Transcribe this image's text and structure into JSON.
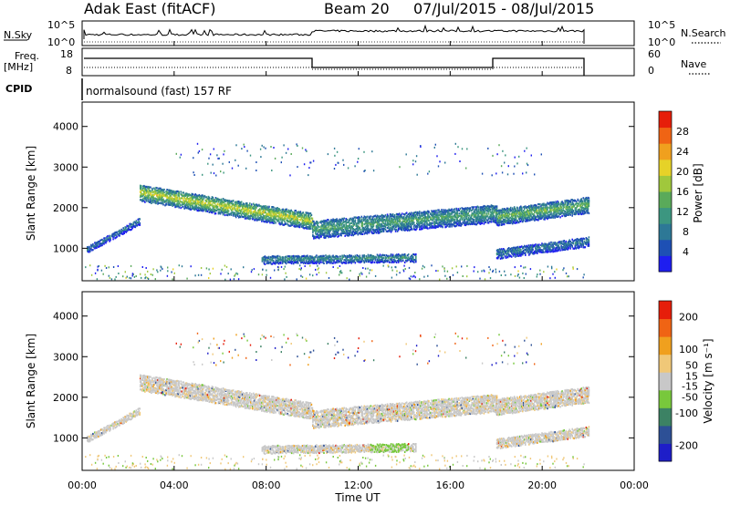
{
  "header": {
    "radar": "Adak East (fitACF)",
    "beam": "Beam 20",
    "dates": "07/Jul/2015 - 08/Jul/2015"
  },
  "top_panels": {
    "nsky_label": "N.Sky",
    "nsky_ticks": [
      "10^5",
      "10^0"
    ],
    "nsearch_label": "N.Search",
    "nsearch_ticks": [
      "10^5",
      "10^0"
    ],
    "freq_label_1": "Freq.",
    "freq_label_2": "[MHz]",
    "freq_ticks": [
      "18",
      "8"
    ],
    "nave_label": "Nave",
    "nave_ticks": [
      "60",
      "0"
    ],
    "cpid_label": "CPID",
    "cpid_value": "normalsound (fast) 157 RF"
  },
  "colors": {
    "power": [
      "#1e1ef0",
      "#1e50b4",
      "#2d7896",
      "#3c9680",
      "#5aaa5a",
      "#a0c83c",
      "#e6d228",
      "#f0a01e",
      "#f06414",
      "#e61e0a"
    ],
    "velocity": [
      "#1e1ec8",
      "#2d5096",
      "#3c8264",
      "#78c83c",
      "#c8c8c8",
      "#f0c878",
      "#f0a01e",
      "#f06414",
      "#e61e0a"
    ]
  },
  "chart_data": [
    {
      "type": "heatmap",
      "name": "power",
      "ylabel": "Slant Range [km]",
      "yticks": [
        "1000",
        "2000",
        "3000",
        "4000"
      ],
      "ylim": [
        200,
        4600
      ],
      "xlim_hours": [
        0,
        24
      ],
      "colorbar_label": "Power [dB]",
      "colorbar_ticks": [
        "4",
        "8",
        "12",
        "16",
        "20",
        "24",
        "28"
      ],
      "colorbar_range": [
        0,
        32
      ],
      "bands": [
        {
          "x": [
            2.5,
            10.0
          ],
          "y": [
            2400,
            1700
          ],
          "width": 400,
          "level": 18
        },
        {
          "x": [
            10.0,
            18.0
          ],
          "y": [
            1500,
            1900
          ],
          "width": 450,
          "level": 12
        },
        {
          "x": [
            18.0,
            22.0
          ],
          "y": [
            1800,
            2100
          ],
          "width": 400,
          "level": 14
        },
        {
          "x": [
            0.2,
            2.5
          ],
          "y": [
            1000,
            1700
          ],
          "width": 150,
          "level": 8
        },
        {
          "x": [
            7.8,
            14.5
          ],
          "y": [
            750,
            800
          ],
          "width": 200,
          "level": 10
        },
        {
          "x": [
            18.0,
            22.0
          ],
          "y": [
            900,
            1200
          ],
          "width": 250,
          "level": 8
        }
      ]
    },
    {
      "type": "heatmap",
      "name": "velocity",
      "ylabel": "Slant Range [km]",
      "yticks": [
        "1000",
        "2000",
        "3000",
        "4000"
      ],
      "ylim": [
        200,
        4600
      ],
      "xlim_hours": [
        0,
        24
      ],
      "xticks": [
        "00:00",
        "04:00",
        "08:00",
        "12:00",
        "16:00",
        "20:00",
        "00:00"
      ],
      "xlabel": "Time UT",
      "colorbar_label": "Velocity [m s⁻¹]",
      "colorbar_ticks": [
        "200",
        "100",
        "50",
        "15",
        "-15",
        "-50",
        "-100",
        "-200"
      ],
      "colorbar_range": [
        -250,
        250
      ]
    }
  ]
}
